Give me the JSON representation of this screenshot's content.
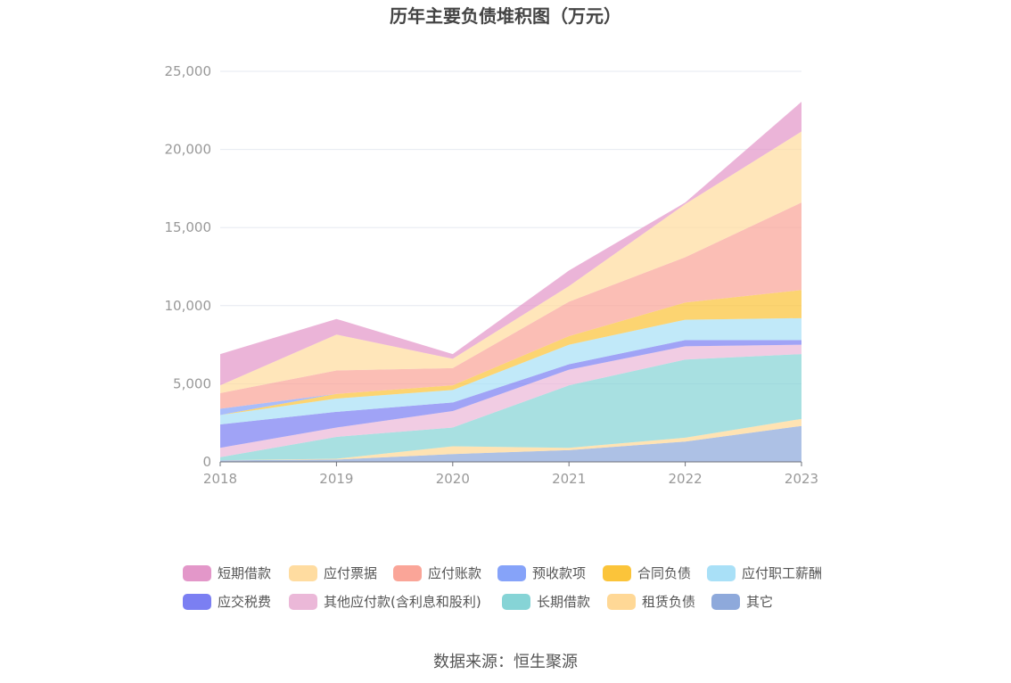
{
  "chart_data": {
    "type": "area",
    "title": "历年主要负债堆积图（万元）",
    "source": "数据来源：恒生聚源",
    "x": [
      "2018",
      "2019",
      "2020",
      "2021",
      "2022",
      "2023"
    ],
    "y_ticks": [
      "0",
      "5,000",
      "10,000",
      "15,000",
      "20,000",
      "25,000"
    ],
    "ylim": [
      0,
      25000
    ],
    "stacked": true,
    "grid": true,
    "legend_position": "bottom",
    "series": [
      {
        "name": "其它",
        "color": "#8ea9db",
        "values": [
          100,
          150,
          500,
          750,
          1300,
          2300
        ]
      },
      {
        "name": "租赁负债",
        "color": "#ffd896",
        "values": [
          0,
          50,
          500,
          150,
          250,
          450
        ]
      },
      {
        "name": "长期借款",
        "color": "#86d4d6",
        "values": [
          200,
          1400,
          1200,
          4000,
          5000,
          4150
        ]
      },
      {
        "name": "其他应付款(含利息和股利)",
        "color": "#ebb8d8",
        "values": [
          600,
          600,
          1050,
          1000,
          850,
          600
        ]
      },
      {
        "name": "应交税费",
        "color": "#7b7ff2",
        "values": [
          1500,
          1000,
          550,
          350,
          400,
          300
        ]
      },
      {
        "name": "应付职工薪酬",
        "color": "#a9e0f7",
        "values": [
          600,
          850,
          800,
          1250,
          1300,
          1400
        ]
      },
      {
        "name": "合同负债",
        "color": "#fbc43a",
        "values": [
          0,
          300,
          300,
          550,
          1100,
          1800
        ]
      },
      {
        "name": "预收款项",
        "color": "#86a3f9",
        "values": [
          400,
          0,
          0,
          0,
          0,
          0
        ]
      },
      {
        "name": "应付账款",
        "color": "#faa598",
        "values": [
          1000,
          1500,
          1100,
          2200,
          2900,
          5600
        ]
      },
      {
        "name": "应付票据",
        "color": "#ffdca0",
        "values": [
          500,
          2300,
          600,
          1000,
          3400,
          4550
        ]
      },
      {
        "name": "短期借款",
        "color": "#e397c9",
        "values": [
          2000,
          1000,
          300,
          1000,
          100,
          1900
        ]
      }
    ],
    "legend_order": [
      "短期借款",
      "应付票据",
      "应付账款",
      "预收款项",
      "合同负债",
      "应付职工薪酬",
      "应交税费",
      "其他应付款(含利息和股利)",
      "长期借款",
      "租赁负债",
      "其它"
    ]
  }
}
